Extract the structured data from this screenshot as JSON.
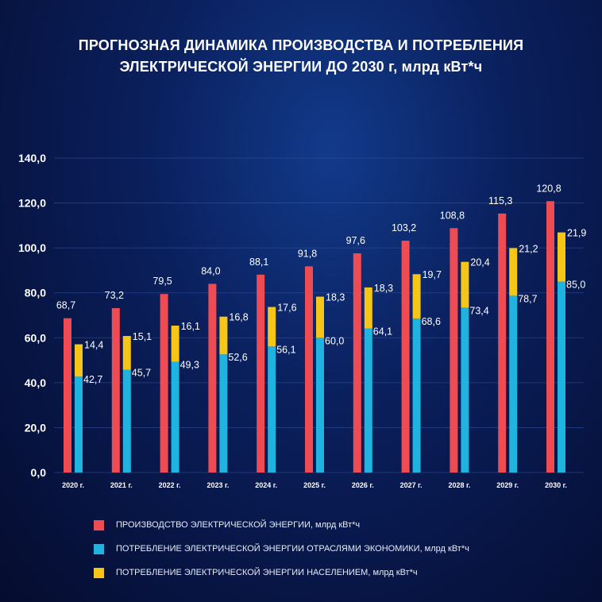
{
  "chart_data": {
    "type": "bar",
    "title_lines": [
      "ПРОГНОЗНАЯ ДИНАМИКА ПРОИЗВОДСТВА И ПОТРЕБЛЕНИЯ",
      "ЭЛЕКТРИЧЕСКОЙ ЭНЕРГИИ ДО 2030 г, млрд кВт*ч"
    ],
    "categories": [
      "2020 г.",
      "2021 г.",
      "2022 г.",
      "2023 г.",
      "2024 г.",
      "2025 г.",
      "2026 г.",
      "2027 г.",
      "2028 г.",
      "2029 г.",
      "2030 г."
    ],
    "ylim": [
      0,
      140
    ],
    "yticks": [
      "0,0",
      "20,0",
      "40,0",
      "60,0",
      "80,0",
      "100,0",
      "120,0",
      "140,0"
    ],
    "grid": true,
    "legend_placement": "bottom",
    "series": [
      {
        "name": "ПРОИЗВОДСТВО ЭЛЕКТРИЧЕСКОЙ ЭНЕРГИИ, млрд кВт*ч",
        "color": "#ee4b52",
        "stack": "production",
        "values": [
          68.7,
          73.2,
          79.5,
          84.0,
          88.1,
          91.8,
          97.6,
          103.2,
          108.8,
          115.3,
          120.8
        ],
        "labels": [
          "68,7",
          "73,2",
          "79,5",
          "84,0",
          "88,1",
          "91,8",
          "97,6",
          "103,2",
          "108,8",
          "115,3",
          "120,8"
        ]
      },
      {
        "name": "ПОТРЕБЛЕНИЕ ЭЛЕКТРИЧЕСКОЙ ЭНЕРГИИ ОТРАСЛЯМИ ЭКОНОМИКИ, млрд кВт*ч",
        "color": "#1fb4e0",
        "stack": "consumption",
        "values": [
          42.7,
          45.7,
          49.3,
          52.6,
          56.1,
          60.0,
          64.1,
          68.6,
          73.4,
          78.7,
          85.0
        ],
        "labels": [
          "42,7",
          "45,7",
          "49,3",
          "52,6",
          "56,1",
          "60,0",
          "64,1",
          "68,6",
          "73,4",
          "78,7",
          "85,0"
        ]
      },
      {
        "name": "ПОТРЕБЛЕНИЕ ЭЛЕКТРИЧЕСКОЙ ЭНЕРГИИ НАСЕЛЕНИЕМ, млрд кВт*ч",
        "color": "#f5c518",
        "stack": "consumption",
        "values": [
          14.4,
          15.1,
          16.1,
          16.8,
          17.6,
          18.3,
          18.3,
          19.7,
          20.4,
          21.2,
          21.9
        ],
        "labels": [
          "14,4",
          "15,1",
          "16,1",
          "16,8",
          "17,6",
          "18,3",
          "18,3",
          "19,7",
          "20,4",
          "21,2",
          "21,9"
        ]
      }
    ]
  }
}
